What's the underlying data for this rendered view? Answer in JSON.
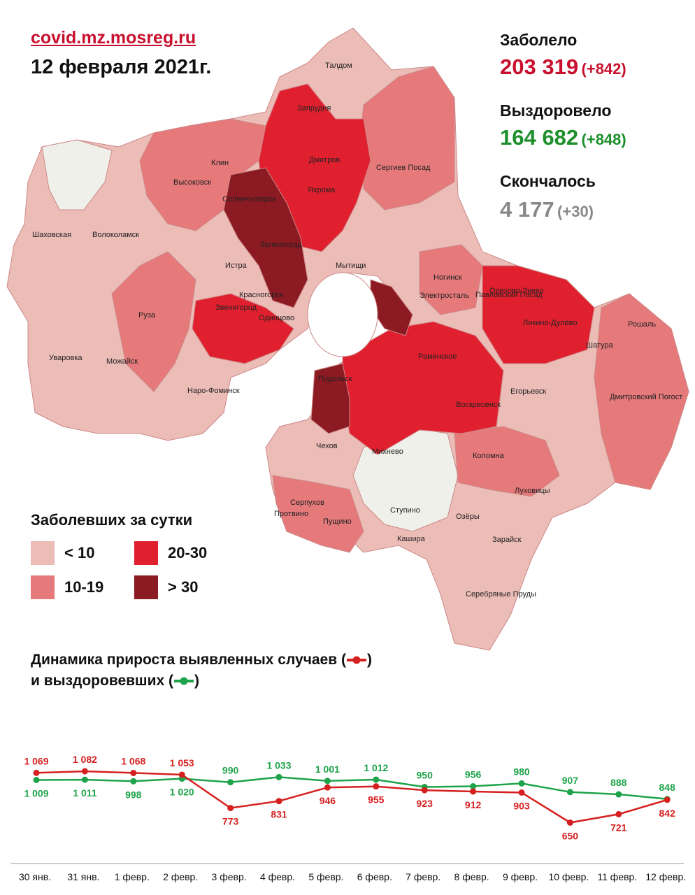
{
  "header": {
    "site": "covid.mz.mosreg.ru",
    "date": "12 февраля 2021г."
  },
  "stats": {
    "infected_label": "Заболело",
    "infected_value": "203 319",
    "infected_delta": "(+842)",
    "recovered_label": "Выздоровело",
    "recovered_value": "164 682",
    "recovered_delta": "(+848)",
    "died_label": "Скончалось",
    "died_value": "4 177",
    "died_delta": "(+30)"
  },
  "map": {
    "labels": [
      "Дмитров",
      "Яхрома",
      "Сергиев Посад",
      "Клин",
      "Высоковск",
      "Солнечногорск",
      "Зеленоград",
      "Мытищи",
      "Запрудня",
      "Талдом",
      "Шаховская",
      "Волоколамск",
      "Истра",
      "Красногорск",
      "Звенигород",
      "Одинцово",
      "Руза",
      "Уваровка",
      "Можайск",
      "Наро-Фоминск",
      "Ногинск",
      "Электросталь",
      "Павловский Посад",
      "Орехово-Зуево",
      "Ликино-Дулёво",
      "Раменское",
      "Рошаль",
      "Шатура",
      "Егорьевск",
      "Воскресенск",
      "Дмитровский Погост",
      "Подольск",
      "Чехов",
      "Михнево",
      "Коломна",
      "Луховицы",
      "Серпухов",
      "Пущино",
      "Протвино",
      "Ступино",
      "Озёры",
      "Кашира",
      "Зарайск",
      "Серебряные Пруды"
    ],
    "colors": {
      "lt10": "#ecbcb7",
      "c10_19": "#e6797a",
      "c20_30": "#e0202e",
      "gt30": "#8b1a22",
      "low": "#f0f0ea"
    }
  },
  "legend": {
    "title": "Заболевших за сутки",
    "items": [
      {
        "label": "< 10",
        "color": "#ecbcb7"
      },
      {
        "label": "20-30",
        "color": "#e0202e"
      },
      {
        "label": "10-19",
        "color": "#e6797a"
      },
      {
        "label": "> 30",
        "color": "#8b1a22"
      }
    ]
  },
  "dynamics": {
    "line1": "Динамика прироста выявленных случаев (",
    "line1_end": ")",
    "line2": "и выздоровевших (",
    "line2_end": ")"
  },
  "chart_data": {
    "type": "line",
    "categories": [
      "30 янв.",
      "31 янв.",
      "1 февр.",
      "2 февр.",
      "3 февр.",
      "4 февр.",
      "5 февр.",
      "6 февр.",
      "7 февр.",
      "8 февр.",
      "9 февр.",
      "10 февр.",
      "11 февр.",
      "12 февр."
    ],
    "series": [
      {
        "values": [
          1069,
          1082,
          1068,
          1053,
          773,
          831,
          946,
          955,
          923,
          912,
          903,
          650,
          721,
          842
        ],
        "labels": [
          "1 069",
          "1 082",
          "1 068",
          "1 053",
          "773",
          "831",
          "946",
          "955",
          "923",
          "912",
          "903",
          "650",
          "721",
          "842"
        ],
        "color": "#d62020"
      },
      {
        "values": [
          1009,
          1011,
          998,
          1020,
          990,
          1033,
          1001,
          1012,
          950,
          956,
          980,
          907,
          888,
          848
        ],
        "labels": [
          "1 009",
          "1 011",
          "998",
          "1 020",
          "990",
          "1 033",
          "1 001",
          "1 012",
          "950",
          "956",
          "980",
          "907",
          "888",
          "848"
        ],
        "color": "#1ea34a"
      }
    ],
    "title": "",
    "xlabel": "",
    "ylabel": ""
  }
}
